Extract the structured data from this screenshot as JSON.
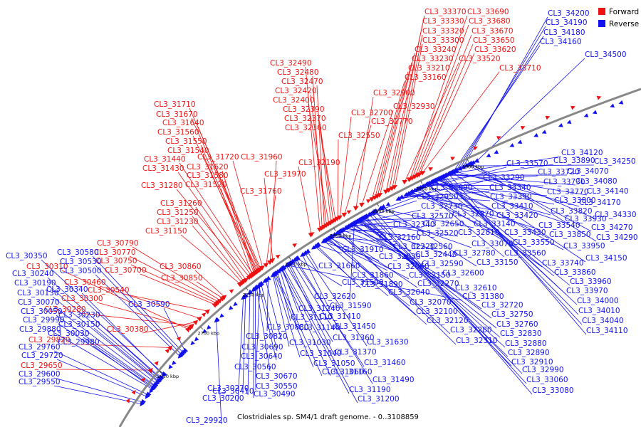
{
  "caption": "Clostridiales sp. SM4/1 draft genome. - 0..3108859",
  "legend": [
    {
      "label": "Forward",
      "color": "#ee1111"
    },
    {
      "label": "Reverse",
      "color": "#1111ee"
    }
  ],
  "colors": {
    "forward": "#ee1111",
    "reverse": "#1111ee",
    "backbone": "#888888"
  },
  "ticks": [
    "2650 kbp",
    "2700 kbp",
    "2750 kbp",
    "2800 kbp",
    "2850 kbp",
    "2900 kbp",
    "2950 kbp",
    "3000 kbp"
  ],
  "forward_labels": [
    {
      "text": "CL3_33370",
      "t": 0.65
    },
    {
      "text": "CL3_33690",
      "t": 0.688
    },
    {
      "text": "CL3_33330",
      "t": 0.655
    },
    {
      "text": "CL3_33680",
      "t": 0.692
    },
    {
      "text": "CL3_33320",
      "t": 0.66
    },
    {
      "text": "CL3_33670",
      "t": 0.696
    },
    {
      "text": "CL3_33300",
      "t": 0.664
    },
    {
      "text": "CL3_33650",
      "t": 0.7
    },
    {
      "text": "CL3_33240",
      "t": 0.64
    },
    {
      "text": "CL3_33620",
      "t": 0.703
    },
    {
      "text": "CL3_33230",
      "t": 0.636
    },
    {
      "text": "CL3_33520",
      "t": 0.68
    },
    {
      "text": "CL3_33210",
      "t": 0.632
    },
    {
      "text": "CL3_33710",
      "t": 0.708
    },
    {
      "text": "CL3_33160",
      "t": 0.627
    },
    {
      "text": "CL3_32490",
      "t": 0.536
    },
    {
      "text": "CL3_32480",
      "t": 0.54
    },
    {
      "text": "CL3_32470",
      "t": 0.544
    },
    {
      "text": "CL3_32420",
      "t": 0.548
    },
    {
      "text": "CL3_32400",
      "t": 0.552
    },
    {
      "text": "CL3_32390",
      "t": 0.556
    },
    {
      "text": "CL3_32370",
      "t": 0.56
    },
    {
      "text": "CL3_32360",
      "t": 0.564
    },
    {
      "text": "CL3_32900",
      "t": 0.6
    },
    {
      "text": "CL3_32930",
      "t": 0.61
    },
    {
      "text": "CL3_32700",
      "t": 0.572
    },
    {
      "text": "CL3_32770",
      "t": 0.58
    },
    {
      "text": "CL3_32550",
      "t": 0.568
    },
    {
      "text": "CL3_31710",
      "t": 0.42
    },
    {
      "text": "CL3_31670",
      "t": 0.418
    },
    {
      "text": "CL3_31640",
      "t": 0.416
    },
    {
      "text": "CL3_31560",
      "t": 0.414
    },
    {
      "text": "CL3_31550",
      "t": 0.412
    },
    {
      "text": "CL3_31540",
      "t": 0.41
    },
    {
      "text": "CL3_31720",
      "t": 0.424
    },
    {
      "text": "CL3_31440",
      "t": 0.404
    },
    {
      "text": "CL3_31620",
      "t": 0.408
    },
    {
      "text": "CL3_31430",
      "t": 0.4
    },
    {
      "text": "CL3_31580",
      "t": 0.406
    },
    {
      "text": "CL3_31520",
      "t": 0.402
    },
    {
      "text": "CL3_31960",
      "t": 0.44
    },
    {
      "text": "CL3_32190",
      "t": 0.52
    },
    {
      "text": "CL3_31970",
      "t": 0.445
    },
    {
      "text": "CL3_31760",
      "t": 0.432
    },
    {
      "text": "CL3_31280",
      "t": 0.396
    },
    {
      "text": "CL3_31260",
      "t": 0.388
    },
    {
      "text": "CL3_31250",
      "t": 0.384
    },
    {
      "text": "CL3_31230",
      "t": 0.38
    },
    {
      "text": "CL3_31150",
      "t": 0.376
    },
    {
      "text": "CL3_30790",
      "t": 0.33
    },
    {
      "text": "CL3_30770",
      "t": 0.326
    },
    {
      "text": "CL3_30750",
      "t": 0.322
    },
    {
      "text": "CL3_30700",
      "t": 0.318
    },
    {
      "text": "CL3_30860",
      "t": 0.34
    },
    {
      "text": "CL3_30850",
      "t": 0.336
    },
    {
      "text": "CL3_30310",
      "t": 0.25
    },
    {
      "text": "CL3_30460",
      "t": 0.28
    },
    {
      "text": "CL3_30540",
      "t": 0.3
    },
    {
      "text": "CL3_30300",
      "t": 0.255
    },
    {
      "text": "CL3_30280",
      "t": 0.26
    },
    {
      "text": "CL3_30380",
      "t": 0.27
    },
    {
      "text": "CL3_29820",
      "t": 0.2
    },
    {
      "text": "CL3_29650",
      "t": 0.14
    }
  ],
  "reverse_labels": [
    {
      "text": "CL3_34200",
      "t": 0.76
    },
    {
      "text": "CL3_34190",
      "t": 0.755
    },
    {
      "text": "CL3_34180",
      "t": 0.75
    },
    {
      "text": "CL3_34160",
      "t": 0.745
    },
    {
      "text": "CL3_34500",
      "t": 0.78
    },
    {
      "text": "CL3_33570",
      "t": 0.69
    },
    {
      "text": "CL3_33290",
      "t": 0.66
    },
    {
      "text": "CL3_33340",
      "t": 0.665
    },
    {
      "text": "CL3_33390",
      "t": 0.672
    },
    {
      "text": "CL3_33410",
      "t": 0.676
    },
    {
      "text": "CL3_33420",
      "t": 0.68
    },
    {
      "text": "CL3_33540",
      "t": 0.686
    },
    {
      "text": "CL3_33430",
      "t": 0.682
    },
    {
      "text": "CL3_33550",
      "t": 0.692
    },
    {
      "text": "CL3_33560",
      "t": 0.695
    },
    {
      "text": "CL3_33890",
      "t": 0.716
    },
    {
      "text": "CL3_33720",
      "t": 0.7
    },
    {
      "text": "CL3_33730",
      "t": 0.704
    },
    {
      "text": "CL3_33770",
      "t": 0.708
    },
    {
      "text": "CL3_33800",
      "t": 0.712
    },
    {
      "text": "CL3_33820",
      "t": 0.714
    },
    {
      "text": "CL3_34120",
      "t": 0.74
    },
    {
      "text": "CL3_34250",
      "t": 0.765
    },
    {
      "text": "CL3_34070",
      "t": 0.735
    },
    {
      "text": "CL3_34080",
      "t": 0.738
    },
    {
      "text": "CL3_34140",
      "t": 0.742
    },
    {
      "text": "CL3_34170",
      "t": 0.748
    },
    {
      "text": "CL3_33930",
      "t": 0.72
    },
    {
      "text": "CL3_34330",
      "t": 0.77
    },
    {
      "text": "CL3_34270",
      "t": 0.768
    },
    {
      "text": "CL3_34290",
      "t": 0.772
    },
    {
      "text": "CL3_33850",
      "t": 0.716
    },
    {
      "text": "CL3_33950",
      "t": 0.722
    },
    {
      "text": "CL3_34150",
      "t": 0.744
    },
    {
      "text": "CL3_33740",
      "t": 0.706
    },
    {
      "text": "CL3_33860",
      "t": 0.718
    },
    {
      "text": "CL3_33960",
      "t": 0.724
    },
    {
      "text": "CL3_33970",
      "t": 0.726
    },
    {
      "text": "CL3_34000",
      "t": 0.728
    },
    {
      "text": "CL3_34010",
      "t": 0.73
    },
    {
      "text": "CL3_34040",
      "t": 0.733
    },
    {
      "text": "CL3_34110",
      "t": 0.739
    },
    {
      "text": "CL3_33090",
      "t": 0.62
    },
    {
      "text": "CL3_32950",
      "t": 0.6
    },
    {
      "text": "CL3_32730",
      "t": 0.585
    },
    {
      "text": "CL3_32570",
      "t": 0.575
    },
    {
      "text": "CL3_32870",
      "t": 0.595
    },
    {
      "text": "CL3_32650",
      "t": 0.58
    },
    {
      "text": "CL3_33140",
      "t": 0.63
    },
    {
      "text": "CL3_32340",
      "t": 0.56
    },
    {
      "text": "CL3_32520",
      "t": 0.57
    },
    {
      "text": "CL3_32810",
      "t": 0.59
    },
    {
      "text": "CL3_32160",
      "t": 0.545
    },
    {
      "text": "CL3_32560",
      "t": 0.572
    },
    {
      "text": "CL3_33070",
      "t": 0.618
    },
    {
      "text": "CL3_32220",
      "t": 0.55
    },
    {
      "text": "CL3_32780",
      "t": 0.588
    },
    {
      "text": "CL3_31910",
      "t": 0.52
    },
    {
      "text": "CL3_32440",
      "t": 0.565
    },
    {
      "text": "CL3_32030",
      "t": 0.53
    },
    {
      "text": "CL3_32590",
      "t": 0.578
    },
    {
      "text": "CL3_33150",
      "t": 0.635
    },
    {
      "text": "CL3_31660",
      "t": 0.5
    },
    {
      "text": "CL3_32060",
      "t": 0.535
    },
    {
      "text": "CL3_31860",
      "t": 0.515
    },
    {
      "text": "CL3_32150",
      "t": 0.542
    },
    {
      "text": "CL3_32600",
      "t": 0.582
    },
    {
      "text": "CL3_31890",
      "t": 0.518
    },
    {
      "text": "CL3_32270",
      "t": 0.555
    },
    {
      "text": "CL3_31500",
      "t": 0.48
    },
    {
      "text": "CL3_32610",
      "t": 0.584
    },
    {
      "text": "CL3_32040",
      "t": 0.532
    },
    {
      "text": "CL3_32620",
      "t": 0.586
    },
    {
      "text": "CL3_31380",
      "t": 0.46
    },
    {
      "text": "CL3_32070",
      "t": 0.538
    },
    {
      "text": "CL3_32720",
      "t": 0.592
    },
    {
      "text": "CL3_31240",
      "t": 0.45
    },
    {
      "text": "CL3_31590",
      "t": 0.49
    },
    {
      "text": "CL3_32100",
      "t": 0.54
    },
    {
      "text": "CL3_32750",
      "t": 0.594
    },
    {
      "text": "CL3_31110",
      "t": 0.44
    },
    {
      "text": "CL3_31410",
      "t": 0.465
    },
    {
      "text": "CL3_32120",
      "t": 0.544
    },
    {
      "text": "CL3_32760",
      "t": 0.596
    },
    {
      "text": "CL3_30880",
      "t": 0.42
    },
    {
      "text": "CL3_31140",
      "t": 0.445
    },
    {
      "text": "CL3_31450",
      "t": 0.47
    },
    {
      "text": "CL3_32280",
      "t": 0.558
    },
    {
      "text": "CL3_32830",
      "t": 0.598
    },
    {
      "text": "CL3_30820",
      "t": 0.415
    },
    {
      "text": "CL3_31360",
      "t": 0.458
    },
    {
      "text": "CL3_32310",
      "t": 0.562
    },
    {
      "text": "CL3_32880",
      "t": 0.602
    },
    {
      "text": "CL3_31030",
      "t": 0.43
    },
    {
      "text": "CL3_31630",
      "t": 0.495
    },
    {
      "text": "CL3_30690",
      "t": 0.405
    },
    {
      "text": "CL3_31370",
      "t": 0.462
    },
    {
      "text": "CL3_32890",
      "t": 0.604
    },
    {
      "text": "CL3_31040",
      "t": 0.432
    },
    {
      "text": "CL3_30640",
      "t": 0.4
    },
    {
      "text": "CL3_31460",
      "t": 0.475
    },
    {
      "text": "CL3_32910",
      "t": 0.606
    },
    {
      "text": "CL3_31050",
      "t": 0.434
    },
    {
      "text": "CL3_30560",
      "t": 0.395
    },
    {
      "text": "CL3_32990",
      "t": 0.612
    },
    {
      "text": "CL3_31060",
      "t": 0.436
    },
    {
      "text": "CL3_30670",
      "t": 0.402
    },
    {
      "text": "CL3_31490",
      "t": 0.478
    },
    {
      "text": "CL3_33060",
      "t": 0.616
    },
    {
      "text": "CL3_31160",
      "t": 0.448
    },
    {
      "text": "CL3_30550",
      "t": 0.392
    },
    {
      "text": "CL3_31190",
      "t": 0.449
    },
    {
      "text": "CL3_33080",
      "t": 0.622
    },
    {
      "text": "CL3_30410",
      "t": 0.38
    },
    {
      "text": "CL3_31200",
      "t": 0.452
    },
    {
      "text": "CL3_30490",
      "t": 0.388
    },
    {
      "text": "CL3_30270",
      "t": 0.37
    },
    {
      "text": "CL3_30200",
      "t": 0.365
    },
    {
      "text": "CL3_29920",
      "t": 0.3
    },
    {
      "text": "CL3_30350",
      "t": 0.15
    },
    {
      "text": "CL3_30580",
      "t": 0.21
    },
    {
      "text": "CL3_30530",
      "t": 0.205
    },
    {
      "text": "CL3_30240",
      "t": 0.14
    },
    {
      "text": "CL3_30500",
      "t": 0.2
    },
    {
      "text": "CL3_30190",
      "t": 0.135
    },
    {
      "text": "CL3_30340",
      "t": 0.148
    },
    {
      "text": "CL3_30130",
      "t": 0.13
    },
    {
      "text": "CL3_30590",
      "t": 0.215
    },
    {
      "text": "CL3_30070",
      "t": 0.125
    },
    {
      "text": "CL3_30050",
      "t": 0.12
    },
    {
      "text": "CL3_30230",
      "t": 0.138
    },
    {
      "text": "CL3_29990",
      "t": 0.115
    },
    {
      "text": "CL3_30150",
      "t": 0.132
    },
    {
      "text": "CL3_29880",
      "t": 0.11
    },
    {
      "text": "CL3_30030",
      "t": 0.118
    },
    {
      "text": "CL3_29980",
      "t": 0.112
    },
    {
      "text": "CL3_29760",
      "t": 0.095
    },
    {
      "text": "CL3_29720",
      "t": 0.09
    },
    {
      "text": "CL3_29600",
      "t": 0.075
    },
    {
      "text": "CL3_29550",
      "t": 0.07
    }
  ]
}
